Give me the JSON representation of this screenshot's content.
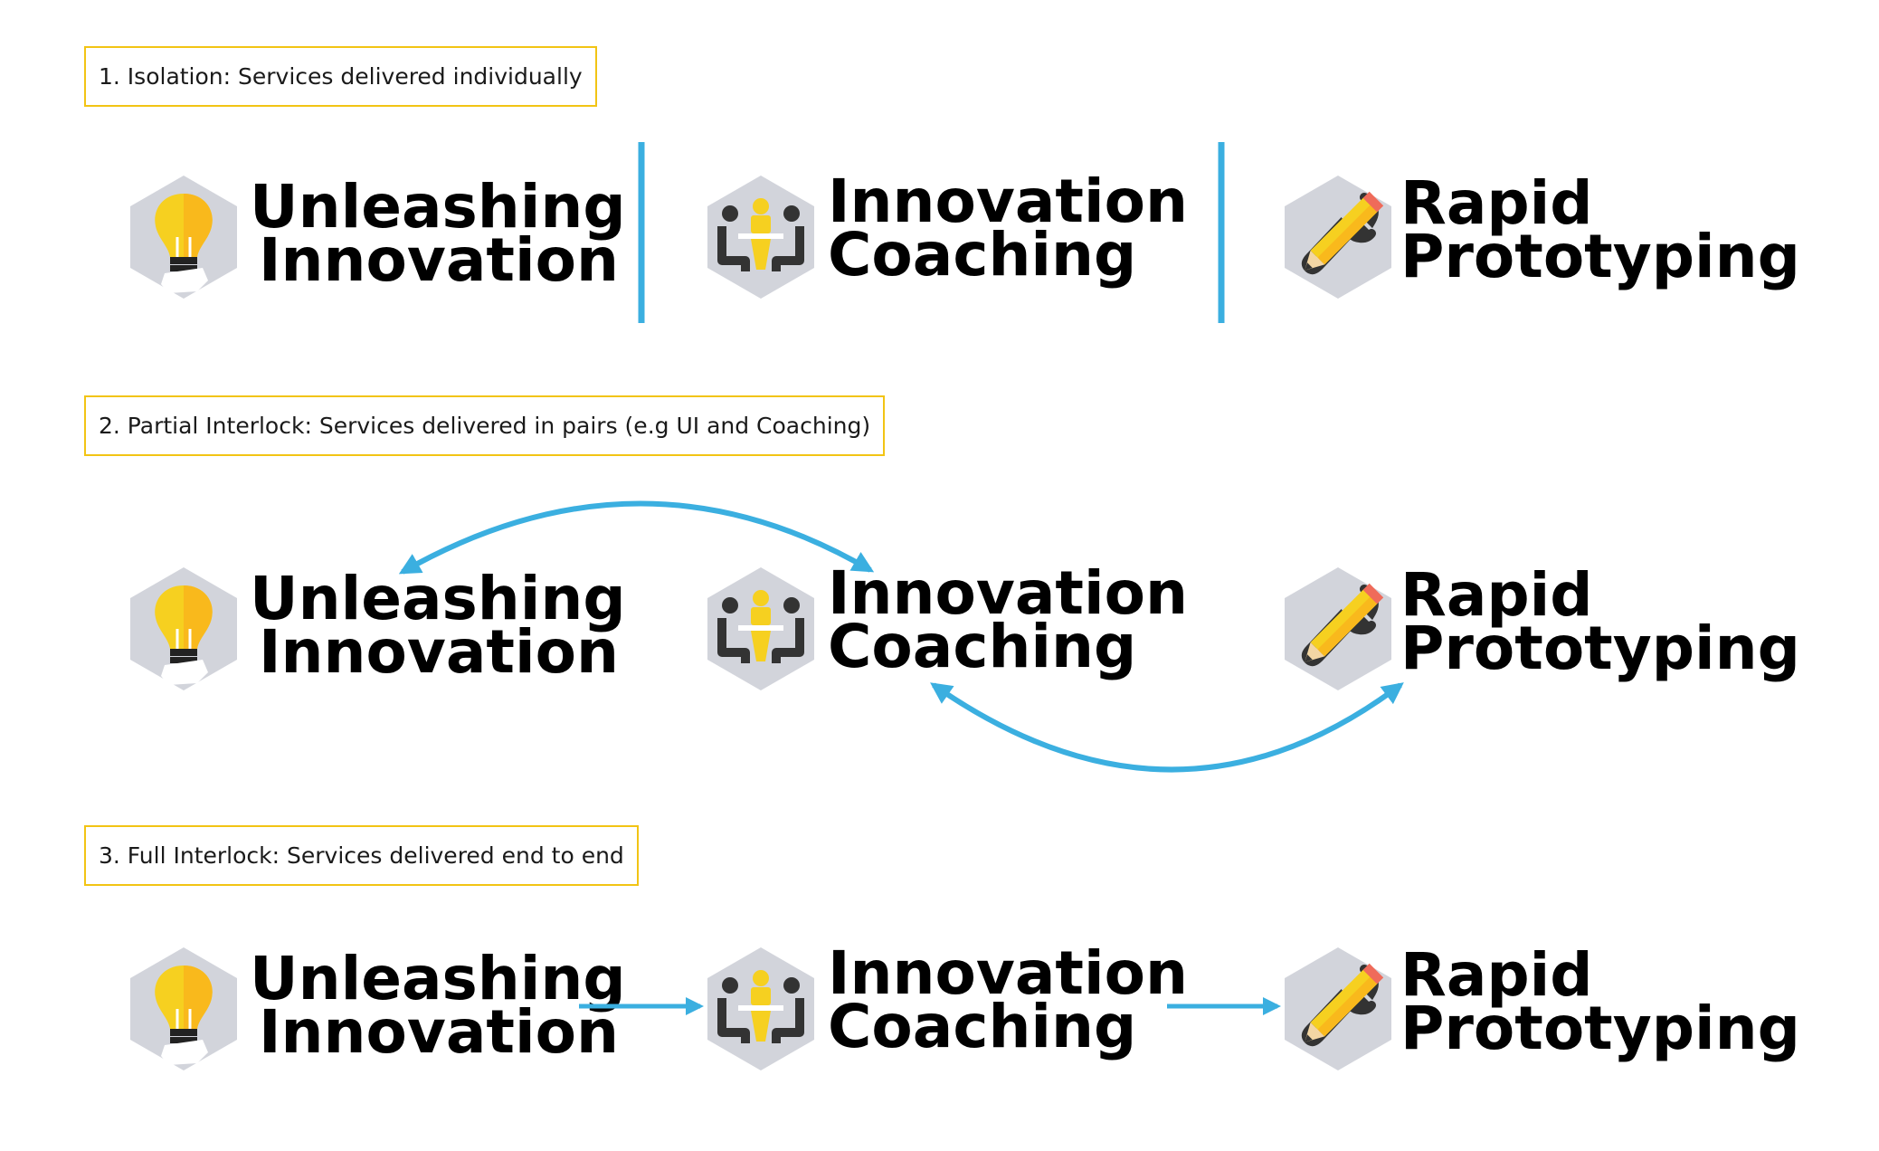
{
  "sections": [
    {
      "label": "1. Isolation: Services delivered individually"
    },
    {
      "label": "2. Partial Interlock: Services delivered in pairs (e.g UI and Coaching)"
    },
    {
      "label": "3. Full Interlock: Services delivered end to end"
    }
  ],
  "services": {
    "unleashing": {
      "line1": "Unleashing",
      "line2": "Innovation",
      "icon": "lightbulb-icon"
    },
    "coaching": {
      "line1": "Innovation",
      "line2": "Coaching",
      "icon": "meeting-icon"
    },
    "prototyping": {
      "line1": "Rapid",
      "line2": "Prototyping",
      "icon": "pencil-wrench-icon"
    }
  },
  "colors": {
    "connector": "#3bafe0",
    "label_border": "#f2c414",
    "icon_hex": "#d2d4db",
    "accent_yellow": "#f6d020",
    "dark": "#333333"
  }
}
